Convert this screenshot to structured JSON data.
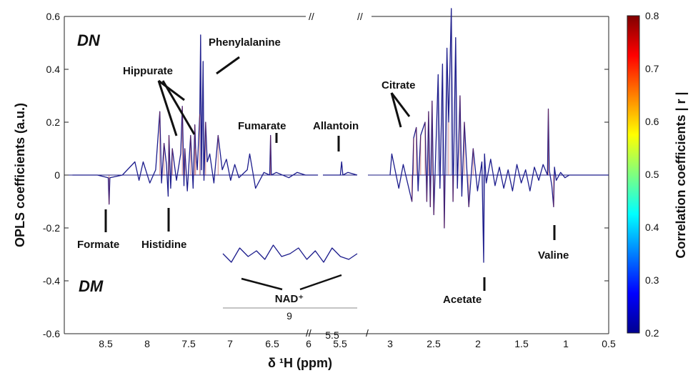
{
  "chart_data": {
    "type": "line",
    "title": "",
    "xlabel": "δ ¹H (ppm)",
    "ylabel": "OPLS coefficients (a.u.)",
    "x_direction": "reversed",
    "ylim": [
      -0.6,
      0.6
    ],
    "y_ticks": [
      "0.6",
      "0.4",
      "0.2",
      "0",
      "-0.2",
      "-0.4",
      "-0.6"
    ],
    "x_ticks": [
      "8.5",
      "8",
      "7.5",
      "7",
      "6.5",
      "6",
      "5.5",
      "5.5",
      "3",
      "2.5",
      "2",
      "1.5",
      "1",
      "0.5"
    ],
    "axis_breaks": true,
    "group_labels": {
      "top": "DN",
      "bottom": "DM"
    },
    "colorbar": {
      "label": "Correlation coefficients | r |",
      "range": [
        0.2,
        0.8
      ],
      "ticks": [
        "0.8",
        "0.7",
        "0.6",
        "0.5",
        "0.4",
        "0.3",
        "0.2"
      ]
    },
    "annotations": [
      {
        "text": "Phenylalanine",
        "x": 7.33,
        "y": 0.53
      },
      {
        "text": "Hippurate",
        "x": 7.7,
        "y": 0.26
      },
      {
        "text": "Fumarate",
        "x": 6.52,
        "y": 0.15
      },
      {
        "text": "Allantoin",
        "x": 5.4,
        "y": 0.05
      },
      {
        "text": "Citrate",
        "x": 2.65,
        "y": 0.2
      },
      {
        "text": "Formate",
        "x": 8.46,
        "y": -0.11
      },
      {
        "text": "Histidine",
        "x": 7.75,
        "y": -0.08
      },
      {
        "text": "Acetate",
        "x": 1.92,
        "y": -0.33
      },
      {
        "text": "Valine",
        "x": 1.13,
        "y": -0.12
      },
      {
        "text": "NAD⁺",
        "x": 9.0,
        "y": -0.4
      }
    ],
    "inset": {
      "x_tick": "9",
      "label": "NAD⁺"
    },
    "series": [
      {
        "segment": "aromatic",
        "x": [
          8.9,
          8.6,
          8.47,
          8.46,
          8.45,
          8.3,
          8.15,
          8.1,
          8.05,
          7.97,
          7.9,
          7.85,
          7.83,
          7.8,
          7.77,
          7.75,
          7.74,
          7.72,
          7.7,
          7.65,
          7.6,
          7.58,
          7.56,
          7.55,
          7.52,
          7.48,
          7.45,
          7.43,
          7.42,
          7.4,
          7.37,
          7.36,
          7.35,
          7.33,
          7.32,
          7.3,
          7.28,
          7.25,
          7.2,
          7.15,
          7.1,
          7.05,
          7.0,
          6.95,
          6.9,
          6.8,
          6.77,
          6.7,
          6.6,
          6.53,
          6.52,
          6.51,
          6.45,
          6.3,
          6.2,
          6.1,
          5.95
        ],
        "y": [
          0.0,
          0.0,
          -0.01,
          -0.11,
          -0.01,
          0.0,
          0.05,
          -0.02,
          0.05,
          -0.03,
          0.02,
          0.24,
          -0.03,
          0.12,
          0.04,
          -0.08,
          0.15,
          -0.05,
          0.1,
          -0.02,
          0.08,
          0.26,
          -0.04,
          0.1,
          -0.06,
          0.15,
          -0.05,
          0.19,
          0.1,
          0.02,
          0.23,
          0.53,
          0.02,
          0.43,
          -0.02,
          0.2,
          0.05,
          0.08,
          -0.03,
          0.15,
          0.02,
          0.06,
          -0.02,
          0.04,
          -0.01,
          0.02,
          0.08,
          -0.05,
          0.01,
          0.0,
          0.15,
          0.0,
          0.01,
          -0.01,
          0.01,
          0.0,
          0.0
        ]
      },
      {
        "segment": "allantoin",
        "x": [
          5.7,
          5.5,
          5.42,
          5.4,
          5.38,
          5.3,
          5.15
        ],
        "y": [
          0.0,
          0.0,
          0.0,
          0.05,
          0.0,
          0.01,
          0.0
        ]
      },
      {
        "segment": "aliphatic",
        "x": [
          3.0,
          2.98,
          2.9,
          2.85,
          2.75,
          2.73,
          2.7,
          2.68,
          2.65,
          2.6,
          2.58,
          2.56,
          2.54,
          2.52,
          2.5,
          2.45,
          2.43,
          2.4,
          2.38,
          2.35,
          2.33,
          2.3,
          2.28,
          2.25,
          2.23,
          2.2,
          2.18,
          2.15,
          2.1,
          2.05,
          2.0,
          1.95,
          1.93,
          1.92,
          1.9,
          1.85,
          1.8,
          1.75,
          1.7,
          1.65,
          1.6,
          1.55,
          1.5,
          1.45,
          1.4,
          1.35,
          1.3,
          1.25,
          1.2,
          1.19,
          1.18,
          1.15,
          1.13,
          1.12,
          1.1,
          1.05,
          1.0,
          0.95,
          0.9,
          0.85,
          0.7,
          0.5
        ],
        "y": [
          0.0,
          0.08,
          -0.05,
          0.04,
          -0.1,
          0.14,
          0.18,
          -0.06,
          0.15,
          0.2,
          -0.1,
          0.24,
          -0.12,
          0.28,
          -0.15,
          0.38,
          -0.05,
          0.42,
          -0.2,
          0.48,
          0.2,
          0.63,
          -0.1,
          0.52,
          -0.05,
          0.3,
          -0.08,
          0.2,
          -0.12,
          0.1,
          -0.06,
          0.05,
          -0.33,
          0.08,
          -0.03,
          0.06,
          -0.04,
          0.03,
          -0.05,
          0.02,
          -0.06,
          0.04,
          -0.03,
          0.02,
          -0.06,
          0.03,
          -0.02,
          0.04,
          0.0,
          0.25,
          0.02,
          -0.04,
          -0.12,
          0.03,
          -0.02,
          0.01,
          -0.01,
          0.0,
          0.0,
          0.0,
          0.0,
          0.0
        ]
      },
      {
        "segment": "inset_NAD",
        "x": [
          9.4,
          9.35,
          9.3,
          9.25,
          9.2,
          9.15,
          9.1,
          9.05,
          9.0,
          8.95,
          8.9,
          8.85,
          8.8,
          8.75,
          8.7,
          8.65,
          8.6
        ],
        "y": [
          0.0,
          -0.03,
          0.02,
          -0.01,
          0.01,
          -0.02,
          0.03,
          -0.01,
          0.0,
          0.02,
          -0.02,
          0.01,
          -0.03,
          0.02,
          -0.01,
          -0.02,
          0.0
        ]
      }
    ]
  }
}
